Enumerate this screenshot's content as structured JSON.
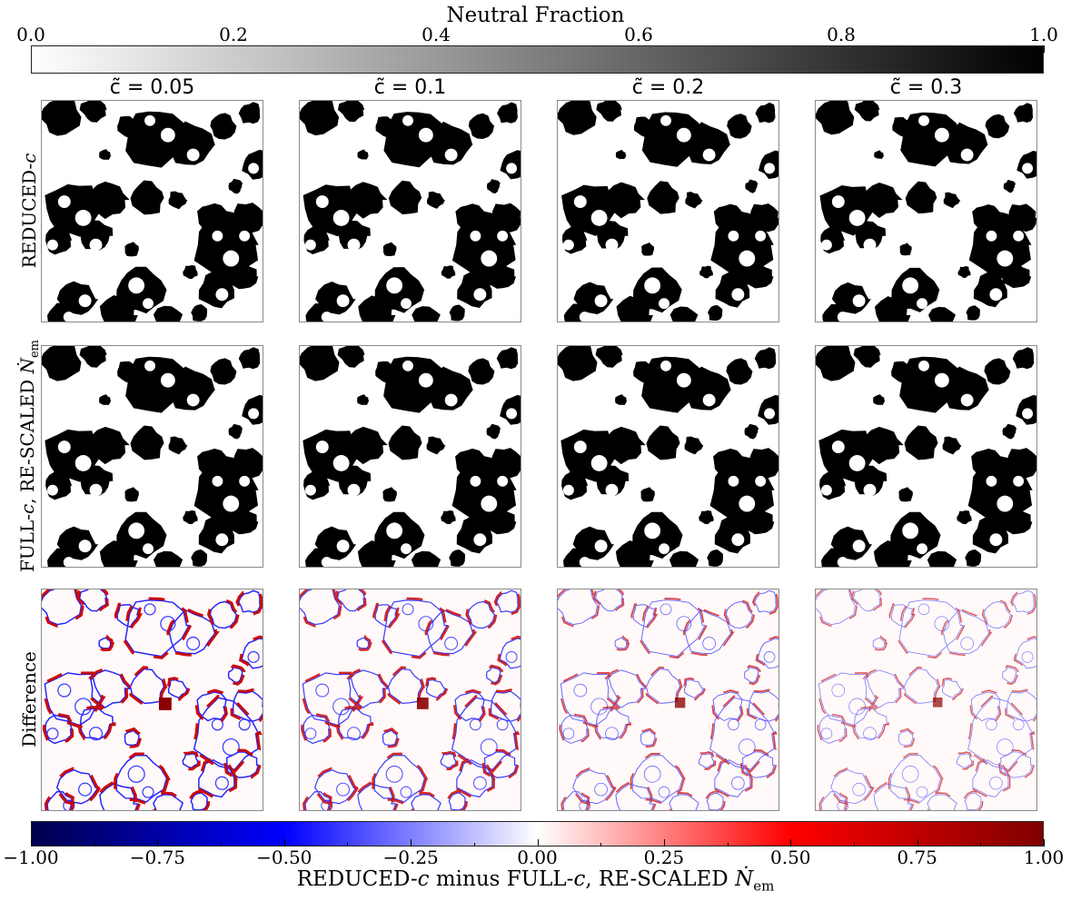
{
  "chart_data": [
    {
      "type": "heatmap",
      "colorbar": {
        "title": "Neutral Fraction",
        "range": [
          0.0,
          1.0
        ],
        "ticks": [
          "0.0",
          "0.2",
          "0.4",
          "0.6",
          "0.8",
          "1.0"
        ],
        "tick_values": [
          0.0,
          0.2,
          0.4,
          0.6,
          0.8,
          1.0
        ],
        "colormap": "gray_r",
        "color_low": "#ffffff",
        "color_high": "#000000",
        "placement": "top"
      },
      "columns": [
        "c̃ = 0.05",
        "c̃ = 0.1",
        "c̃ = 0.2",
        "c̃ = 0.3"
      ],
      "rows": [
        "REDUCED-c",
        "FULL-c, RE-SCALED Ṅem"
      ],
      "description_values": "binary-like neutral fraction maps; black = neutral (1.0), white = ionized (0.0)"
    },
    {
      "type": "heatmap",
      "colorbar": {
        "title": "REDUCED-c minus FULL-c, RE-SCALED Ṅem",
        "range": [
          -1.0,
          1.0
        ],
        "ticks": [
          "−1.00",
          "−0.75",
          "−0.50",
          "−0.25",
          "0.00",
          "0.25",
          "0.50",
          "0.75",
          "1.00"
        ],
        "tick_values": [
          -1.0,
          -0.75,
          -0.5,
          -0.25,
          0.0,
          0.25,
          0.5,
          0.75,
          1.0
        ],
        "colormap": "seismic",
        "color_low": "#00004d",
        "color_mid": "#ffffff",
        "color_high": "#7f0000",
        "placement": "bottom"
      },
      "columns": [
        "c̃ = 0.05",
        "c̃ = 0.1",
        "c̃ = 0.2",
        "c̃ = 0.3"
      ],
      "rows": [
        "Difference"
      ],
      "difference_strength": [
        1.0,
        0.8,
        0.55,
        0.4
      ]
    }
  ],
  "labels": {
    "top_title": "Neutral Fraction",
    "row1": "REDUCED-c",
    "row2": "FULL-c, RE-SCALED Ṅem",
    "row3": "Difference",
    "bottom_title": "REDUCED-c minus FULL-c, RE-SCALED Ṅem"
  }
}
